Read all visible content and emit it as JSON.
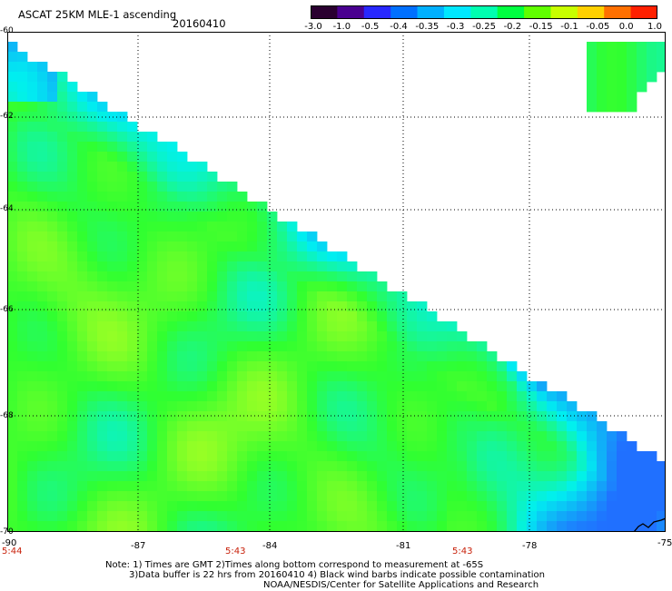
{
  "header": {
    "title": "ASCAT 25KM MLE-1 ascending",
    "date": "20160410"
  },
  "colorbar": {
    "tick_labels": [
      "-3.0",
      "-1.0",
      "-0.5",
      "-0.4",
      "-0.35",
      "-0.3",
      "-0.25",
      "-0.2",
      "-0.15",
      "-0.1",
      "-0.05",
      "0.0",
      "1.0"
    ],
    "colors": [
      "#2a0030",
      "#4a0090",
      "#2828ff",
      "#0070ff",
      "#00b0ff",
      "#00e8ff",
      "#00ffb0",
      "#00ff40",
      "#60ff00",
      "#c8ff00",
      "#ffd000",
      "#ff7000",
      "#ff2000"
    ]
  },
  "map": {
    "lat_labels": [
      "-60",
      "-62",
      "-64",
      "-66",
      "-68",
      "-70"
    ],
    "lon_labels": [
      "-90",
      "-87",
      "-84",
      "-81",
      "-78",
      "-75"
    ],
    "time_labels": [
      "5:44",
      "5:43",
      "5:43"
    ],
    "field_colors": {
      "ocean_low": "#2070ff",
      "ocean_mid": "#00f0f0",
      "ocean_high": "#30ff30",
      "ocean_peak": "#c8ff20",
      "land": "#ffffff",
      "grid": "#000000",
      "coast": "#000000"
    }
  },
  "footer": {
    "note_line1": "Note: 1) Times are GMT 2)Times along bottom correspond to measurement at -65S",
    "note_line2": "3)Data buffer is 22 hrs from 20160410 4) Black wind barbs indicate possible contamination",
    "credit": "NOAA/NESDIS/Center for Satellite Applications and Research"
  }
}
